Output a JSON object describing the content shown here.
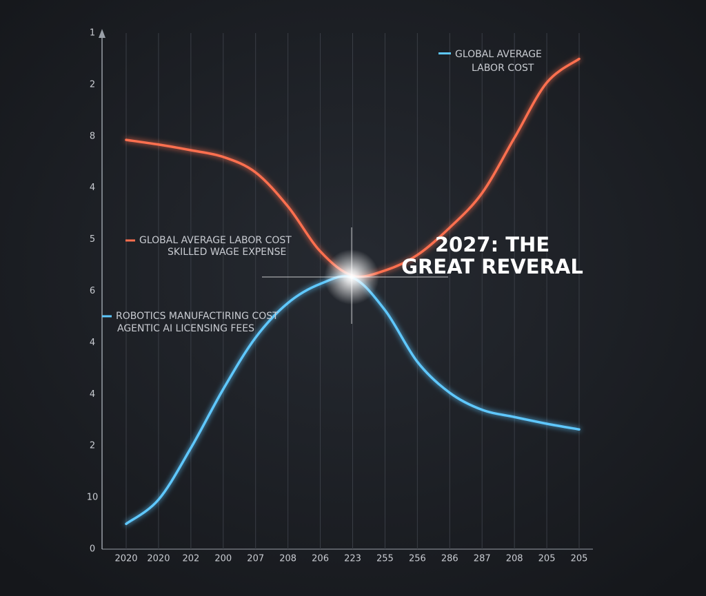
{
  "chart_data": {
    "type": "line",
    "categories": [
      "2020",
      "2020",
      "202",
      "200",
      "207",
      "208",
      "206",
      "223",
      "255",
      "256",
      "286",
      "287",
      "208",
      "205",
      "205"
    ],
    "ylim": [
      0,
      10
    ],
    "yticks": [
      {
        "value": 0,
        "label": "0"
      },
      {
        "value": 1,
        "label": "10"
      },
      {
        "value": 2,
        "label": "2"
      },
      {
        "value": 3,
        "label": "4"
      },
      {
        "value": 4,
        "label": "4"
      },
      {
        "value": 5,
        "label": "6"
      },
      {
        "value": 6,
        "label": "5"
      },
      {
        "value": 7,
        "label": "4"
      },
      {
        "value": 8,
        "label": "8"
      },
      {
        "value": 9,
        "label": "2"
      },
      {
        "value": 10,
        "label": "1"
      }
    ],
    "grid": true,
    "series": [
      {
        "name": "GLOBAL AVERAGE LABOR COST",
        "sublabel": "SKILLED WAGE EXPENSE",
        "color": "#ff6f4f",
        "values": [
          7.93,
          7.84,
          7.73,
          7.6,
          7.3,
          6.64,
          5.77,
          5.3,
          5.4,
          5.7,
          6.23,
          6.9,
          7.97,
          9.04,
          9.5
        ]
      },
      {
        "name": "ROBOTICS MANUFACTIRING COST",
        "sublabel": "AGENTIC AI LICENSING FEES",
        "color": "#5ec8ff",
        "values": [
          0.49,
          0.96,
          1.96,
          3.1,
          4.1,
          4.77,
          5.14,
          5.26,
          4.63,
          3.63,
          3.03,
          2.7,
          2.56,
          2.43,
          2.32
        ]
      }
    ],
    "legend_top_right": [
      "GLOBAL AVERAGE",
      "LABOR COST"
    ],
    "headline": [
      "2027: THE",
      "GREAT REVERAL"
    ]
  }
}
